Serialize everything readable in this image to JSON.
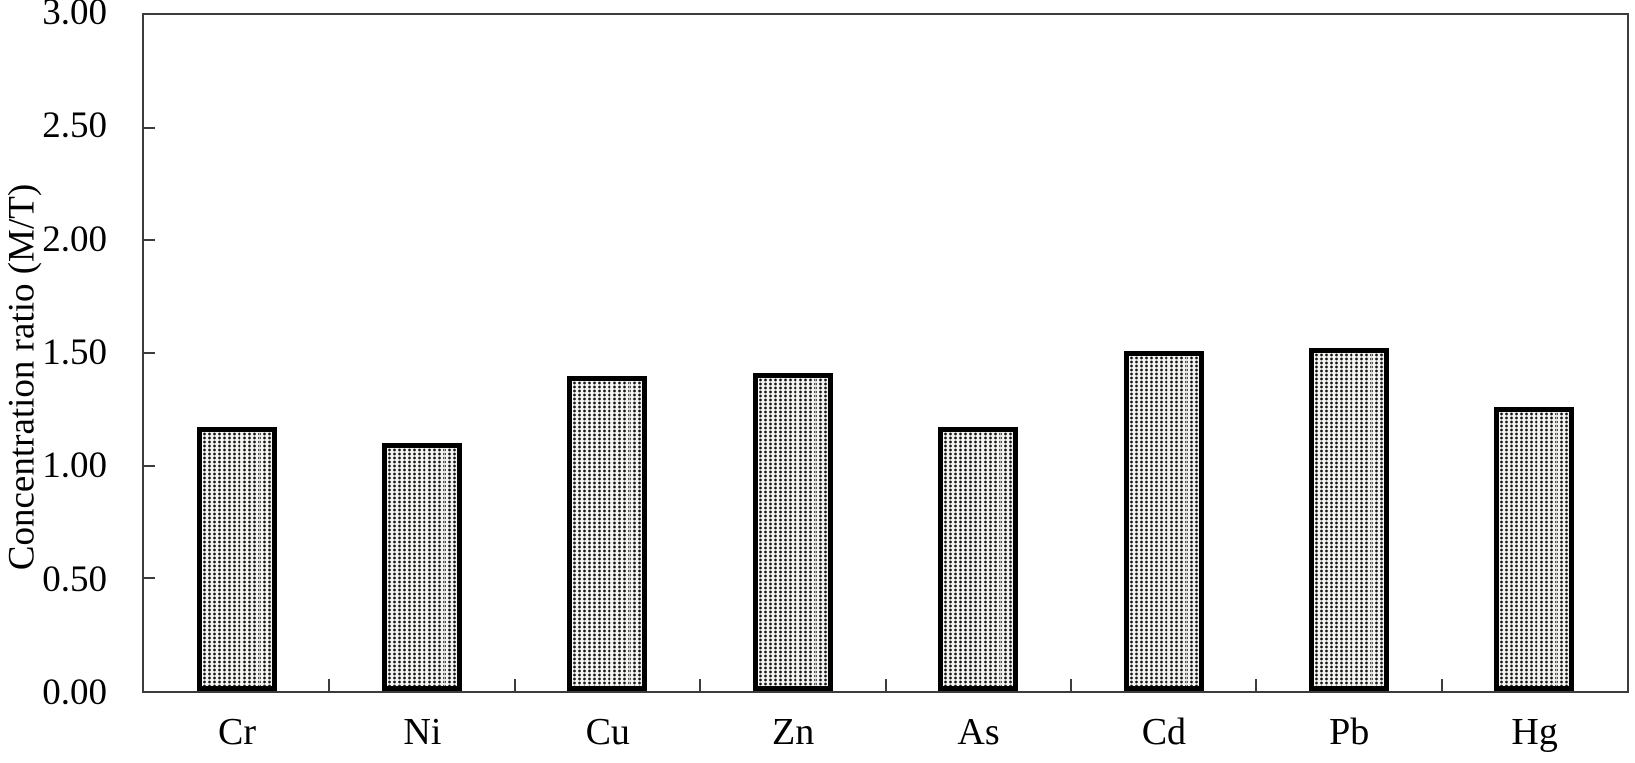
{
  "chart_data": {
    "type": "bar",
    "title": "",
    "xlabel": "",
    "ylabel": "Concentration ratio (M/T)",
    "categories": [
      "Cr",
      "Ni",
      "Cu",
      "Zn",
      "As",
      "Cd",
      "Pb",
      "Hg"
    ],
    "values": [
      1.17,
      1.1,
      1.4,
      1.41,
      1.17,
      1.51,
      1.52,
      1.26
    ],
    "ylim": [
      0.0,
      3.0
    ],
    "ytick_step": 0.5,
    "ytick_labels": [
      "0.00",
      "0.50",
      "1.00",
      "1.50",
      "2.00",
      "2.50",
      "3.00"
    ],
    "grid": false,
    "legend": false,
    "bar_fill": "dotted-stipple-pattern",
    "bar_fill_base_color": "#f4f4f2",
    "bar_dot_color": "#161616",
    "bar_border_color": "#000000",
    "axis_color": "#3c3c3c",
    "background_color": "#ffffff",
    "tick_direction": "inside"
  }
}
